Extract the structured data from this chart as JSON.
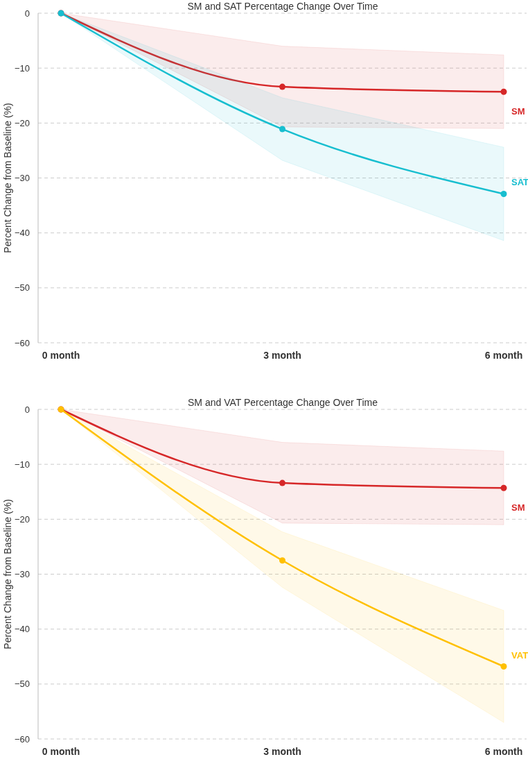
{
  "chart_data": [
    {
      "type": "line",
      "title": "SM and SAT Percentage Change Over Time",
      "ylabel": "Percent Change from Baseline (%)",
      "categories": [
        "0 month",
        "3 month",
        "6 month"
      ],
      "ylim": [
        -60,
        0
      ],
      "yticks": [
        0,
        -10,
        -20,
        -30,
        -40,
        -50,
        -60
      ],
      "grid": "y",
      "marker": "circle",
      "series": [
        {
          "name": "SM",
          "color": "#d62728",
          "values": [
            0,
            -13.4,
            -14.3
          ],
          "lower": [
            0,
            -20.7,
            -21.0
          ],
          "upper": [
            0,
            -6.0,
            -7.6
          ]
        },
        {
          "name": "SAT",
          "color": "#17becf",
          "values": [
            0,
            -21.1,
            -32.9
          ],
          "lower": [
            0,
            -26.8,
            -41.4
          ],
          "upper": [
            0,
            -15.4,
            -24.4
          ]
        }
      ]
    },
    {
      "type": "line",
      "title": "SM and VAT Percentage Change Over Time",
      "ylabel": "Percent Change from Baseline (%)",
      "categories": [
        "0 month",
        "3 month",
        "6 month"
      ],
      "ylim": [
        -60,
        0
      ],
      "yticks": [
        0,
        -10,
        -20,
        -30,
        -40,
        -50,
        -60
      ],
      "grid": "y",
      "marker": "circle",
      "series": [
        {
          "name": "SM",
          "color": "#d62728",
          "values": [
            0,
            -13.4,
            -14.3
          ],
          "lower": [
            0,
            -20.7,
            -21.0
          ],
          "upper": [
            0,
            -6.0,
            -7.6
          ]
        },
        {
          "name": "VAT",
          "color": "#ffc000",
          "values": [
            0,
            -27.5,
            -46.8
          ],
          "lower": [
            0,
            -32.4,
            -57.0
          ],
          "upper": [
            0,
            -22.3,
            -36.6
          ]
        }
      ]
    }
  ]
}
